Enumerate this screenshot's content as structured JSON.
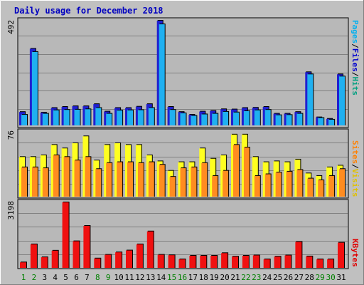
{
  "chart_data": [
    {
      "type": "bar",
      "title": "Daily usage for December 2018",
      "categories": [
        "1",
        "2",
        "3",
        "4",
        "5",
        "6",
        "7",
        "8",
        "9",
        "10",
        "11",
        "12",
        "13",
        "14",
        "15",
        "16",
        "17",
        "18",
        "19",
        "20",
        "21",
        "22",
        "23",
        "24",
        "25",
        "26",
        "27",
        "28",
        "29",
        "30",
        "31"
      ],
      "ytick": "492",
      "ylim": [
        0,
        492
      ],
      "series": [
        {
          "name": "Pages",
          "color": "#2020d0",
          "values": [
            63,
            360,
            60,
            82,
            87,
            90,
            90,
            100,
            65,
            82,
            82,
            88,
            100,
            492,
            87,
            63,
            50,
            65,
            68,
            76,
            75,
            82,
            83,
            87,
            55,
            55,
            63,
            250,
            38,
            31,
            240
          ]
        },
        {
          "name": "Files",
          "color": "#20b0f0",
          "values": [
            50,
            345,
            55,
            71,
            73,
            74,
            76,
            82,
            55,
            70,
            71,
            72,
            82,
            475,
            73,
            57,
            45,
            52,
            55,
            64,
            61,
            67,
            71,
            73,
            48,
            49,
            55,
            240,
            35,
            27,
            230
          ]
        }
      ],
      "side_labels": {
        "pages": "Pages",
        "files": "Files",
        "hits": "Hits",
        "sep": "/"
      }
    },
    {
      "type": "bar",
      "ytick": "76",
      "ylim": [
        0,
        76
      ],
      "series": [
        {
          "name": "Visits",
          "color": "#ffff20",
          "values": [
            46,
            46,
            48,
            60,
            56,
            62,
            70,
            42,
            60,
            62,
            60,
            60,
            48,
            41,
            30,
            40,
            40,
            56,
            44,
            48,
            72,
            72,
            46,
            40,
            41,
            40,
            43,
            27,
            24,
            34,
            36
          ]
        },
        {
          "name": "Sites",
          "color": "#ff8c20",
          "values": [
            34,
            34,
            33,
            48,
            46,
            42,
            46,
            32,
            39,
            40,
            40,
            39,
            40,
            37,
            23,
            33,
            34,
            39,
            24,
            30,
            60,
            57,
            24,
            26,
            28,
            29,
            31,
            21,
            19,
            24,
            32
          ]
        }
      ],
      "side_labels": {
        "sites": "Sites",
        "visits": "Visits",
        "sep": "/"
      }
    },
    {
      "type": "bar",
      "ytick": "3198",
      "ylim": [
        0,
        3198
      ],
      "categories": [
        "1",
        "2",
        "3",
        "4",
        "5",
        "6",
        "7",
        "8",
        "9",
        "10",
        "11",
        "12",
        "13",
        "14",
        "15",
        "16",
        "17",
        "18",
        "19",
        "20",
        "21",
        "22",
        "23",
        "24",
        "25",
        "26",
        "27",
        "28",
        "29",
        "30",
        "31"
      ],
      "weekend_days": [
        "1",
        "2",
        "8",
        "9",
        "15",
        "16",
        "22",
        "23",
        "29",
        "30"
      ],
      "series": [
        {
          "name": "KBytes",
          "color": "#f01010",
          "values": [
            270,
            1150,
            520,
            840,
            3198,
            1300,
            2050,
            460,
            640,
            760,
            850,
            1150,
            1780,
            640,
            620,
            420,
            590,
            590,
            590,
            720,
            550,
            590,
            610,
            420,
            550,
            610,
            1270,
            560,
            420,
            420,
            1230
          ]
        }
      ],
      "side_labels": {
        "kbytes": "KBytes"
      }
    }
  ]
}
